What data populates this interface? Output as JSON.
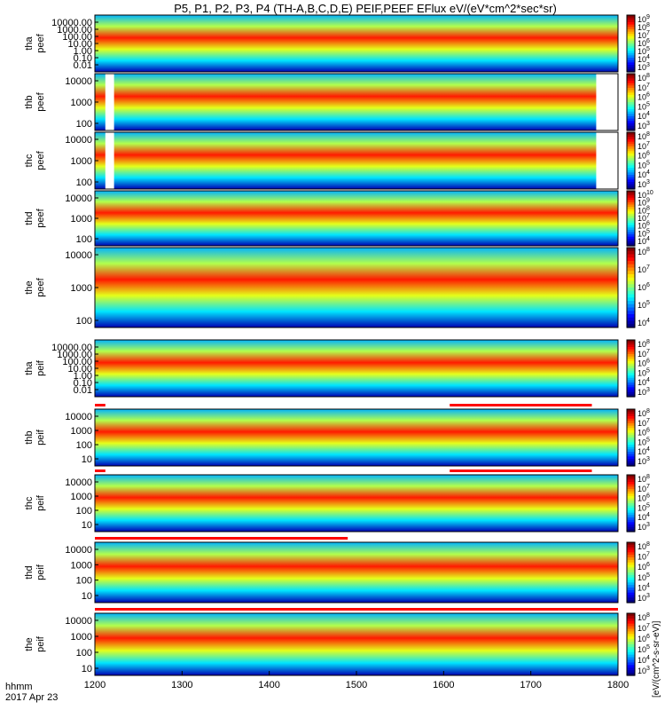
{
  "title": "P5, P1, P2, P3, P4 (TH-A,B,C,D,E) PEIF,PEEF EFlux eV/(eV*cm^2*sec*sr)",
  "x_axis": {
    "ticks": [
      "1200",
      "1300",
      "1400",
      "1500",
      "1600",
      "1700",
      "1800"
    ],
    "footer_label": "hhmm",
    "date_label": "2017 Apr 23"
  },
  "colorbar_unit_label": "[eV/(cm^2-s-sr-eV)]",
  "colors": {
    "black_fill": "#000000",
    "missing": "#ffffff",
    "flag_bar": "#ff0000",
    "flag_bg": "#ffffff"
  },
  "chart_data": {
    "type": "heatmap",
    "description_units": "log10 energy flux, eV/(eV*cm^2*sec*sr)",
    "x_range_hhmm": [
      1200,
      1800
    ],
    "panels": [
      {
        "id": "tha-peef",
        "label_line1": "tha",
        "label_line2": "peef",
        "yticks": [
          "10000.00",
          "1000.00",
          "100.00",
          "10.00",
          "1.00",
          "0.10",
          "0.01"
        ],
        "colorbar": [
          "10^9",
          "10^8",
          "10^7",
          "10^6",
          "10^5",
          "10^4",
          "10^3"
        ],
        "clim_log": [
          3,
          9
        ],
        "flag_bar": false,
        "white_gaps": []
      },
      {
        "id": "thb-peef",
        "label_line1": "thb",
        "label_line2": "peef",
        "yticks": [
          "10000",
          "1000",
          "100"
        ],
        "colorbar": [
          "10^8",
          "10^7",
          "10^6",
          "10^5",
          "10^4",
          "10^3"
        ],
        "clim_log": [
          3,
          8
        ],
        "flag_bar": false,
        "white_gaps": [
          [
            1212,
            1222
          ],
          [
            1775,
            1800
          ]
        ]
      },
      {
        "id": "thc-peef",
        "label_line1": "thc",
        "label_line2": "peef",
        "yticks": [
          "10000",
          "1000",
          "100"
        ],
        "colorbar": [
          "10^8",
          "10^7",
          "10^6",
          "10^5",
          "10^4",
          "10^3"
        ],
        "clim_log": [
          3,
          8
        ],
        "flag_bar": false,
        "white_gaps": [
          [
            1212,
            1222
          ],
          [
            1775,
            1800
          ]
        ]
      },
      {
        "id": "thd-peef",
        "label_line1": "thd",
        "label_line2": "peef",
        "yticks": [
          "10000",
          "1000",
          "100"
        ],
        "colorbar": [
          "10^10",
          "10^9",
          "10^8",
          "10^7",
          "10^6",
          "10^5",
          "10^4"
        ],
        "clim_log": [
          4,
          10
        ],
        "flag_bar": false,
        "white_gaps": []
      },
      {
        "id": "the-peef",
        "label_line1": "the",
        "label_line2": "peef",
        "yticks": [
          "10000",
          "1000",
          "100"
        ],
        "colorbar": [
          "10^8",
          "10^7",
          "10^6",
          "10^5",
          "10^4"
        ],
        "clim_log": [
          4,
          8
        ],
        "flag_bar": false,
        "white_gaps": []
      },
      {
        "id": "tha-peif",
        "label_line1": "tha",
        "label_line2": "peif",
        "yticks": [
          "10000.00",
          "1000.00",
          "100.00",
          "10.00",
          "1.00",
          "0.10",
          "0.01"
        ],
        "colorbar": [
          "10^8",
          "10^7",
          "10^6",
          "10^5",
          "10^4",
          "10^3"
        ],
        "clim_log": [
          3,
          8
        ],
        "flag_bar": false,
        "white_gaps": []
      },
      {
        "id": "thb-peif",
        "label_line1": "thb",
        "label_line2": "peif",
        "yticks": [
          "10000",
          "1000",
          "100",
          "10"
        ],
        "colorbar": [
          "10^8",
          "10^7",
          "10^6",
          "10^5",
          "10^4",
          "10^3"
        ],
        "clim_log": [
          3,
          8
        ],
        "flag_bar": true,
        "flag_segments": [
          [
            1200,
            1212
          ],
          [
            1607,
            1770
          ]
        ],
        "white_gaps": []
      },
      {
        "id": "thc-peif",
        "label_line1": "thc",
        "label_line2": "peif",
        "yticks": [
          "10000",
          "1000",
          "100",
          "10"
        ],
        "colorbar": [
          "10^8",
          "10^7",
          "10^6",
          "10^5",
          "10^4",
          "10^3"
        ],
        "clim_log": [
          3,
          8
        ],
        "flag_bar": true,
        "flag_segments": [
          [
            1200,
            1212
          ],
          [
            1607,
            1770
          ]
        ],
        "white_gaps": []
      },
      {
        "id": "thd-peif",
        "label_line1": "thd",
        "label_line2": "peif",
        "yticks": [
          "10000",
          "1000",
          "100",
          "10"
        ],
        "colorbar": [
          "10^8",
          "10^7",
          "10^6",
          "10^5",
          "10^4",
          "10^3"
        ],
        "clim_log": [
          3,
          8
        ],
        "flag_bar": true,
        "flag_segments": [
          [
            1200,
            1490
          ]
        ],
        "white_gaps": []
      },
      {
        "id": "the-peif",
        "label_line1": "the",
        "label_line2": "peif",
        "yticks": [
          "10000",
          "1000",
          "100",
          "10"
        ],
        "colorbar": [
          "10^8",
          "10^7",
          "10^6",
          "10^5",
          "10^4",
          "10^3"
        ],
        "clim_log": [
          3,
          8
        ],
        "flag_bar": true,
        "flag_segments": [
          [
            1200,
            1800
          ]
        ],
        "white_gaps": []
      }
    ]
  }
}
